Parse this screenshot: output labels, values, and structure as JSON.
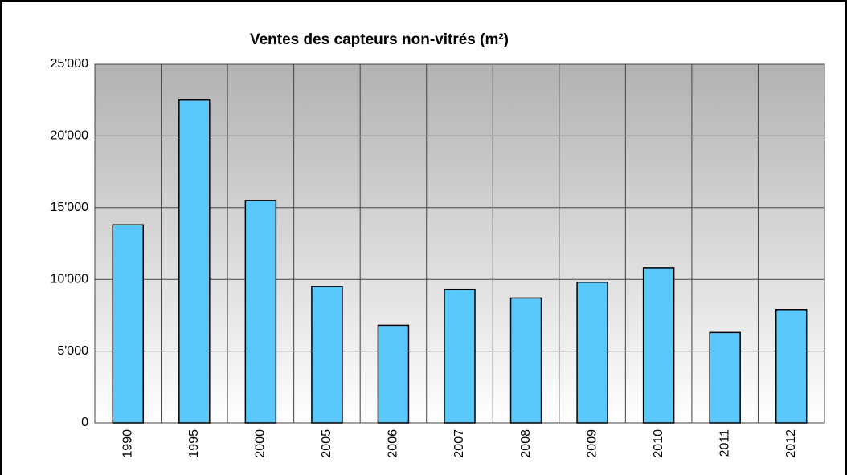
{
  "chart_data": {
    "type": "bar",
    "title": "Ventes des capteurs non-vitrés (m²)",
    "categories": [
      "1990",
      "1995",
      "2000",
      "2005",
      "2006",
      "2007",
      "2008",
      "2009",
      "2010",
      "2011",
      "2012"
    ],
    "values": [
      13800,
      22500,
      15500,
      9500,
      6800,
      9300,
      8700,
      9800,
      10800,
      6300,
      7900
    ],
    "color": "#5bc8fb",
    "ylim": [
      0,
      25000
    ],
    "yticks": [
      0,
      {
        "value": 5000,
        "label": "5'000"
      },
      {
        "value": 10000,
        "label": "10'000"
      },
      {
        "value": 15000,
        "label": "15'000"
      },
      {
        "value": 20000,
        "label": "20'000"
      },
      {
        "value": 25000,
        "label": "25'000"
      }
    ],
    "grid": true
  }
}
